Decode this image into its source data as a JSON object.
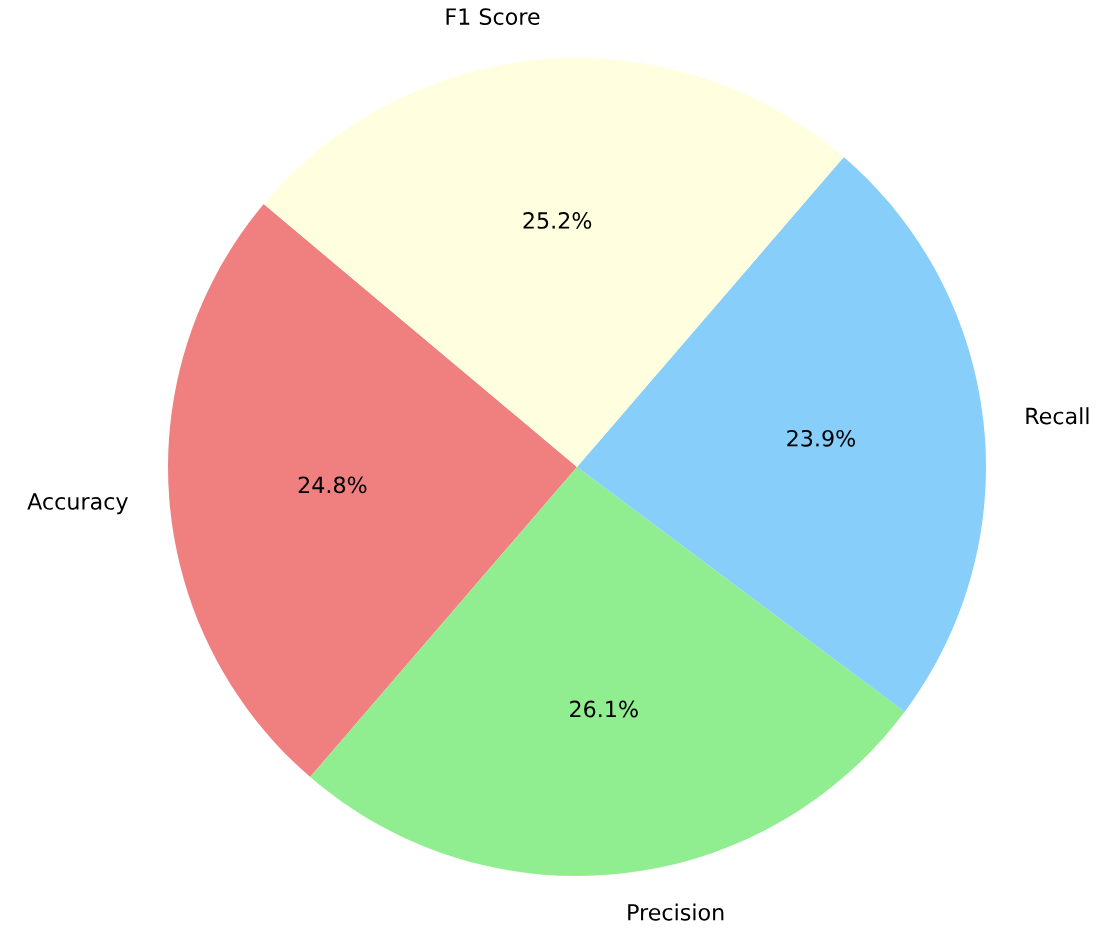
{
  "chart_data": {
    "type": "pie",
    "categories": [
      "Accuracy",
      "Precision",
      "Recall",
      "F1 Score"
    ],
    "values": [
      24.8,
      26.1,
      23.9,
      25.2
    ],
    "colors": [
      "#f08080",
      "#90ee90",
      "#87cefa",
      "#ffffe0"
    ],
    "value_labels": [
      "24.8%",
      "26.1%",
      "23.9%",
      "25.2%"
    ]
  }
}
